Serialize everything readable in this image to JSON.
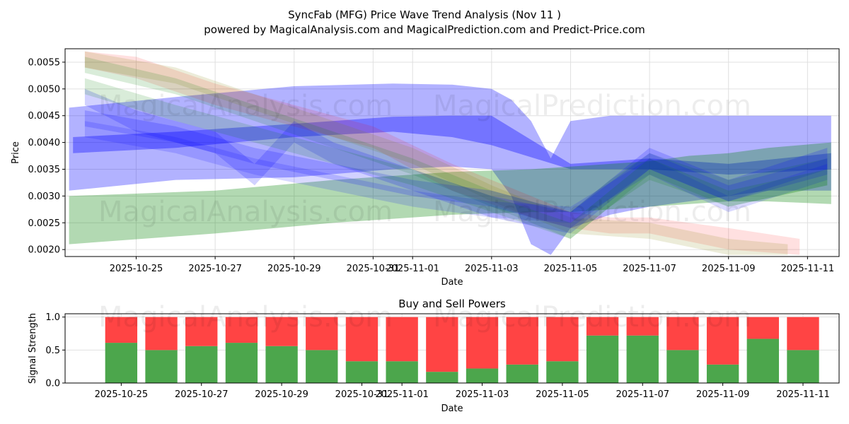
{
  "title": "SyncFab (MFG) Price Wave Trend Analysis (Nov 11 )",
  "subtitle": "powered by MagicalAnalysis.com and MagicalPrediction.com and Predict-Price.com",
  "watermarks": [
    "MagicalAnalysis.com",
    "MagicalPrediction.com"
  ],
  "chart_data": [
    {
      "type": "area",
      "title": "",
      "xlabel": "Date",
      "ylabel": "Price",
      "xlim": [
        -1.8,
        17.8
      ],
      "ylim": [
        0.00187,
        0.00575
      ],
      "x_tick_labels": [
        "2025-10-25",
        "2025-10-27",
        "2025-10-29",
        "2025-10-31",
        "2025-11-01",
        "2025-11-03",
        "2025-11-05",
        "2025-11-07",
        "2025-11-09",
        "2025-11-11"
      ],
      "x_tick_positions": [
        0,
        2,
        4,
        6,
        7,
        9,
        11,
        13,
        15,
        17
      ],
      "y_ticks": [
        0.002,
        0.0025,
        0.003,
        0.0035,
        0.004,
        0.0045,
        0.005,
        0.0055
      ],
      "y_tick_labels": [
        "0.0020",
        "0.0025",
        "0.0030",
        "0.0035",
        "0.0040",
        "0.0045",
        "0.0050",
        "0.0055"
      ],
      "grid": true,
      "bands": [
        {
          "name": "blue-wide",
          "color": "#0000ff",
          "opacity": 0.3,
          "x": [
            -1.7,
            1,
            4,
            6.5,
            8,
            9,
            9.5,
            10,
            10.5,
            11,
            12,
            13,
            14,
            15,
            16,
            17.6
          ],
          "upper": [
            0.00465,
            0.00485,
            0.00505,
            0.0051,
            0.00508,
            0.005,
            0.0048,
            0.0044,
            0.0037,
            0.0044,
            0.0045,
            0.0045,
            0.0045,
            0.0045,
            0.0045,
            0.0045
          ],
          "lower": [
            0.0031,
            0.0033,
            0.00335,
            0.0035,
            0.00355,
            0.0035,
            0.003,
            0.0021,
            0.0019,
            0.0024,
            0.00265,
            0.0028,
            0.0029,
            0.003,
            0.0031,
            0.0031
          ]
        },
        {
          "name": "blue-mid",
          "color": "#0000ff",
          "opacity": 0.35,
          "x": [
            -1.6,
            1,
            4,
            6.5,
            8,
            9,
            11,
            13,
            15,
            17.6
          ],
          "upper": [
            0.0041,
            0.0042,
            0.00435,
            0.00448,
            0.0045,
            0.0045,
            0.0036,
            0.0037,
            0.0036,
            0.0038
          ],
          "lower": [
            0.0038,
            0.0039,
            0.0041,
            0.0042,
            0.0041,
            0.00395,
            0.0035,
            0.0035,
            0.0034,
            0.0035
          ]
        },
        {
          "name": "green-wide",
          "color": "#008000",
          "opacity": 0.3,
          "x": [
            -1.7,
            2,
            5,
            8,
            10,
            11,
            12,
            13,
            14,
            15,
            16,
            17.6
          ],
          "upper": [
            0.003,
            0.0031,
            0.0033,
            0.00345,
            0.0035,
            0.00355,
            0.0036,
            0.00365,
            0.00375,
            0.0038,
            0.0039,
            0.004
          ],
          "lower": [
            0.0021,
            0.0023,
            0.0025,
            0.00265,
            0.0027,
            0.0027,
            0.00275,
            0.0028,
            0.00285,
            0.0029,
            0.0029,
            0.00285
          ]
        },
        {
          "name": "red-decline",
          "color": "#ff0000",
          "opacity": 0.12,
          "x": [
            -1.3,
            0,
            2,
            4,
            6,
            8,
            10,
            11,
            12,
            13,
            15,
            16.8
          ],
          "upper": [
            0.0057,
            0.0056,
            0.0051,
            0.0047,
            0.0043,
            0.0036,
            0.003,
            0.0027,
            0.0026,
            0.0026,
            0.0024,
            0.0022
          ],
          "lower": [
            0.0054,
            0.0052,
            0.0047,
            0.0043,
            0.0039,
            0.0031,
            0.0026,
            0.0024,
            0.0023,
            0.0023,
            0.002,
            0.0019
          ]
        },
        {
          "name": "olive-decline",
          "color": "#808000",
          "opacity": 0.15,
          "x": [
            -1.3,
            1,
            3,
            5,
            7,
            9,
            11,
            13,
            15,
            16.5
          ],
          "upper": [
            0.0057,
            0.0054,
            0.0049,
            0.0044,
            0.0039,
            0.0032,
            0.0026,
            0.0025,
            0.0022,
            0.0021
          ],
          "lower": [
            0.0054,
            0.0051,
            0.0046,
            0.0041,
            0.0036,
            0.0029,
            0.0023,
            0.0022,
            0.0019,
            0.0019
          ]
        },
        {
          "name": "green-decline",
          "color": "#008000",
          "opacity": 0.15,
          "x": [
            -1.3,
            1,
            3,
            5,
            7,
            9,
            11,
            12,
            13,
            15,
            17.5
          ],
          "upper": [
            0.0056,
            0.0052,
            0.0047,
            0.0042,
            0.0037,
            0.0031,
            0.0027,
            0.0033,
            0.0038,
            0.0033,
            0.0037
          ],
          "lower": [
            0.0053,
            0.0049,
            0.0044,
            0.0039,
            0.0034,
            0.0028,
            0.0022,
            0.0028,
            0.0033,
            0.0028,
            0.0032
          ]
        },
        {
          "name": "blue-wave-1",
          "color": "#0000ff",
          "opacity": 0.18,
          "x": [
            -1.3,
            0,
            2,
            3,
            4,
            5,
            7,
            9,
            11,
            13,
            15,
            17.5
          ],
          "upper": [
            0.005,
            0.0046,
            0.0042,
            0.0036,
            0.0044,
            0.004,
            0.0035,
            0.003,
            0.0027,
            0.0039,
            0.0033,
            0.0039
          ],
          "lower": [
            0.0047,
            0.0042,
            0.0038,
            0.0032,
            0.004,
            0.0036,
            0.0031,
            0.0026,
            0.0023,
            0.0035,
            0.0029,
            0.0035
          ]
        },
        {
          "name": "blue-wave-2",
          "color": "#0000ff",
          "opacity": 0.18,
          "x": [
            -1.3,
            1,
            3,
            5,
            7,
            9,
            11,
            13,
            15,
            17.5
          ],
          "upper": [
            0.0046,
            0.0043,
            0.0039,
            0.0036,
            0.0033,
            0.0031,
            0.0027,
            0.0038,
            0.0032,
            0.0037
          ],
          "lower": [
            0.0043,
            0.004,
            0.0036,
            0.0033,
            0.003,
            0.0028,
            0.0024,
            0.0035,
            0.0029,
            0.0034
          ]
        },
        {
          "name": "blue-wave-3",
          "color": "#0000ff",
          "opacity": 0.15,
          "x": [
            -1.3,
            1,
            3,
            5,
            7,
            9,
            11,
            13,
            15,
            17.5
          ],
          "upper": [
            0.0044,
            0.0041,
            0.0037,
            0.0034,
            0.0031,
            0.0029,
            0.0028,
            0.0037,
            0.003,
            0.0036
          ],
          "lower": [
            0.0041,
            0.0038,
            0.0034,
            0.0031,
            0.0028,
            0.0026,
            0.0025,
            0.0034,
            0.0027,
            0.0033
          ]
        },
        {
          "name": "green-wave",
          "color": "#008000",
          "opacity": 0.15,
          "x": [
            -1.3,
            1,
            3,
            5,
            7,
            9,
            11,
            13,
            15,
            17.5
          ],
          "upper": [
            0.0052,
            0.0047,
            0.0043,
            0.0039,
            0.0035,
            0.003,
            0.0025,
            0.0037,
            0.0031,
            0.0035
          ],
          "lower": [
            0.0049,
            0.0044,
            0.004,
            0.0036,
            0.0032,
            0.0027,
            0.0022,
            0.0034,
            0.0028,
            0.0032
          ]
        }
      ]
    },
    {
      "type": "bar",
      "stacked": true,
      "title": "Buy and Sell Powers",
      "xlabel": "Date",
      "ylabel": "Signal Strength",
      "xlim": [
        -1.4,
        17.9
      ],
      "ylim": [
        0,
        1.05
      ],
      "y_ticks": [
        0,
        0.5,
        1
      ],
      "y_tick_labels": [
        "0.0",
        "0.5",
        "1.0"
      ],
      "x_tick_labels": [
        "2025-10-25",
        "2025-10-27",
        "2025-10-29",
        "2025-10-31",
        "2025-11-01",
        "2025-11-03",
        "2025-11-05",
        "2025-11-07",
        "2025-11-09",
        "2025-11-11"
      ],
      "x_tick_positions": [
        0,
        2,
        4,
        6,
        7,
        9,
        11,
        13,
        15,
        17
      ],
      "x": [
        0,
        1,
        2,
        3,
        4,
        5,
        6,
        7,
        8,
        9,
        10,
        11,
        12,
        13,
        14,
        15,
        16,
        17
      ],
      "series": [
        {
          "name": "Buy",
          "color": "#4ca64c",
          "values": [
            0.61,
            0.5,
            0.56,
            0.61,
            0.56,
            0.5,
            0.33,
            0.33,
            0.17,
            0.22,
            0.28,
            0.33,
            0.72,
            0.72,
            0.5,
            0.28,
            0.67,
            0.5
          ]
        },
        {
          "name": "Sell",
          "color": "#ff4444",
          "values": [
            0.39,
            0.5,
            0.44,
            0.39,
            0.44,
            0.5,
            0.67,
            0.67,
            0.83,
            0.78,
            0.72,
            0.67,
            0.28,
            0.28,
            0.5,
            0.72,
            0.33,
            0.5
          ]
        }
      ]
    }
  ]
}
